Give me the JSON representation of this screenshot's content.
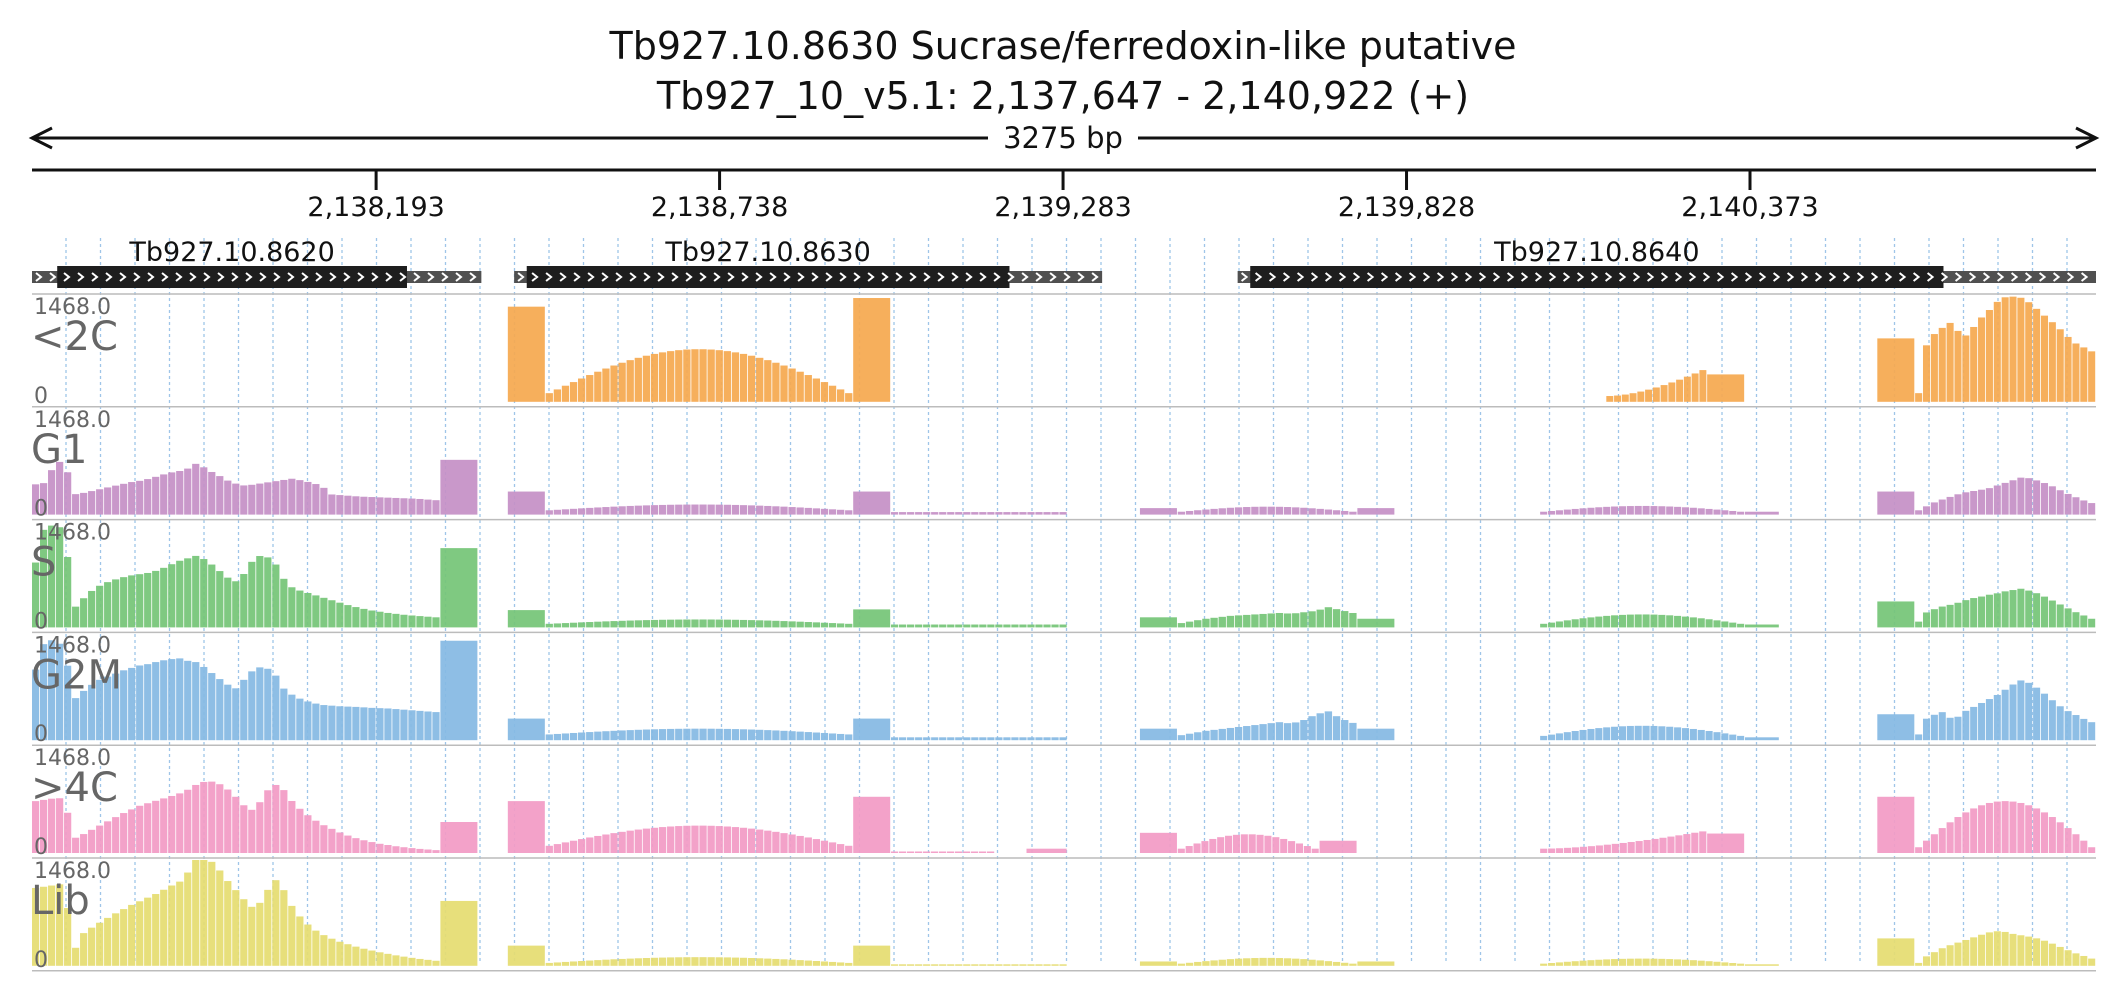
{
  "title": "Tb927.10.8630  Sucrase/ferredoxin-like  putative",
  "subtitle": "Tb927_10_v5.1: 2,137,647 - 2,140,922 (+)",
  "span_label": "3275 bp",
  "chart_data": {
    "type": "bar",
    "region": {
      "chrom": "Tb927_10_v5.1",
      "start": 2137647,
      "end": 2140922,
      "strand": "+"
    },
    "x_ticks": [
      {
        "pos": 2138193,
        "label": "2,138,193"
      },
      {
        "pos": 2138738,
        "label": "2,138,738"
      },
      {
        "pos": 2139283,
        "label": "2,139,283"
      },
      {
        "pos": 2139828,
        "label": "2,139,828"
      },
      {
        "pos": 2140373,
        "label": "2,140,373"
      }
    ],
    "genes": [
      {
        "name": "Tb927.10.8620",
        "utr_start": 2137647,
        "cds_start": 2137687,
        "cds_end": 2138242,
        "utr_end": 2138360
      },
      {
        "name": "Tb927.10.8630",
        "utr_start": 2138412,
        "cds_start": 2138432,
        "cds_end": 2139198,
        "utr_end": 2139345
      },
      {
        "name": "Tb927.10.8640",
        "utr_start": 2139560,
        "cds_start": 2139580,
        "cds_end": 2140680,
        "utr_end": 2140922
      }
    ],
    "ylim": [
      0,
      1468.0
    ],
    "y_max_label": "1468.0",
    "y_min_label": "0",
    "tracks": [
      {
        "name": "<2C",
        "color": "#f5a84e",
        "segments": [
          {
            "start": 2138402,
            "end": 2138462,
            "values": [
              1320
            ]
          },
          {
            "start": 2138462,
            "end": 2138950,
            "kind": "arch",
            "base": 120,
            "peak": 730
          },
          {
            "start": 2138950,
            "end": 2139010,
            "values": [
              1440
            ]
          },
          {
            "start": 2140145,
            "end": 2140305,
            "kind": "rise",
            "base": 80,
            "peak": 440
          },
          {
            "start": 2140305,
            "end": 2140365,
            "values": [
              380
            ]
          },
          {
            "start": 2140575,
            "end": 2140635,
            "values": [
              880
            ]
          },
          {
            "start": 2140635,
            "end": 2140922,
            "kind": "curve",
            "values": [
              120,
              850,
              960,
              1050,
              1120,
              870,
              980,
              1140,
              1250,
              1380,
              1450,
              1460,
              1440,
              1360,
              1250,
              1150,
              1050,
              930,
              820,
              760,
              700
            ]
          }
        ]
      },
      {
        "name": "G1",
        "color": "#c48fc6",
        "segments": [
          {
            "start": 2137647,
            "end": 2138295,
            "kind": "curve",
            "values": [
              420,
              440,
              700,
              760,
              280,
              300,
              330,
              360,
              390,
              420,
              450,
              470,
              500,
              540,
              580,
              600,
              640,
              720,
              620,
              560,
              480,
              430,
              400,
              420,
              440,
              460,
              480,
              500,
              470,
              440,
              400,
              280,
              270,
              260,
              250,
              245,
              240,
              235,
              230,
              225,
              220,
              210,
              200
            ]
          },
          {
            "start": 2138295,
            "end": 2138355,
            "values": [
              760
            ]
          },
          {
            "start": 2138402,
            "end": 2138462,
            "values": [
              320
            ]
          },
          {
            "start": 2138462,
            "end": 2138950,
            "kind": "arch",
            "base": 60,
            "peak": 140
          },
          {
            "start": 2138950,
            "end": 2139010,
            "values": [
              320
            ]
          },
          {
            "start": 2139010,
            "end": 2139290,
            "kind": "flat",
            "value": 35
          },
          {
            "start": 2139405,
            "end": 2139465,
            "values": [
              90
            ]
          },
          {
            "start": 2139465,
            "end": 2139750,
            "kind": "arch",
            "base": 40,
            "peak": 110
          },
          {
            "start": 2139750,
            "end": 2139810,
            "values": [
              90
            ]
          },
          {
            "start": 2140040,
            "end": 2140365,
            "kind": "arch",
            "base": 40,
            "peak": 120
          },
          {
            "start": 2140365,
            "end": 2140420,
            "values": [
              40
            ]
          },
          {
            "start": 2140575,
            "end": 2140635,
            "values": [
              320
            ]
          },
          {
            "start": 2140635,
            "end": 2140922,
            "kind": "curve",
            "values": [
              60,
              120,
              180,
              220,
              260,
              300,
              320,
              340,
              360,
              400,
              440,
              480,
              520,
              500,
              460,
              420,
              360,
              300,
              250,
              200,
              160
            ]
          }
        ]
      },
      {
        "name": "S",
        "color": "#74c476",
        "segments": [
          {
            "start": 2137647,
            "end": 2138295,
            "kind": "curve",
            "values": [
              900,
              1440,
              1400,
              1380,
              260,
              400,
              520,
              600,
              650,
              690,
              720,
              740,
              760,
              800,
              860,
              920,
              960,
              1000,
              920,
              820,
              700,
              640,
              760,
              980,
              1000,
              920,
              680,
              540,
              500,
              460,
              420,
              380,
              340,
              300,
              270,
              240,
              220,
              200,
              185,
              170,
              160,
              150,
              140
            ]
          },
          {
            "start": 2138295,
            "end": 2138355,
            "values": [
              1100
            ]
          },
          {
            "start": 2138402,
            "end": 2138462,
            "values": [
              240
            ]
          },
          {
            "start": 2138462,
            "end": 2138950,
            "kind": "arch",
            "base": 50,
            "peak": 110
          },
          {
            "start": 2138950,
            "end": 2139010,
            "values": [
              250
            ]
          },
          {
            "start": 2139010,
            "end": 2139290,
            "kind": "flat",
            "value": 40
          },
          {
            "start": 2139405,
            "end": 2139465,
            "values": [
              140
            ]
          },
          {
            "start": 2139465,
            "end": 2139750,
            "kind": "curve",
            "values": [
              60,
              90,
              120,
              140,
              160,
              170,
              180,
              190,
              200,
              190,
              210,
              230,
              280,
              240,
              200
            ]
          },
          {
            "start": 2139750,
            "end": 2139810,
            "values": [
              120
            ]
          },
          {
            "start": 2140040,
            "end": 2140365,
            "kind": "arch",
            "base": 50,
            "peak": 180
          },
          {
            "start": 2140365,
            "end": 2140420,
            "values": [
              40
            ]
          },
          {
            "start": 2140575,
            "end": 2140635,
            "values": [
              360
            ]
          },
          {
            "start": 2140635,
            "end": 2140922,
            "kind": "curve",
            "values": [
              80,
              220,
              260,
              300,
              320,
              360,
              400,
              420,
              450,
              470,
              500,
              520,
              540,
              500,
              460,
              400,
              340,
              280,
              220,
              170,
              120
            ]
          }
        ]
      },
      {
        "name": "G2M",
        "color": "#84b8e3",
        "segments": [
          {
            "start": 2137647,
            "end": 2138295,
            "kind": "curve",
            "values": [
              980,
              1400,
              1380,
              1300,
              560,
              680,
              780,
              860,
              900,
              960,
              1000,
              1040,
              1060,
              1100,
              1120,
              1140,
              1100,
              1080,
              980,
              880,
              780,
              720,
              860,
              1000,
              1020,
              940,
              720,
              620,
              560,
              520,
              490,
              480,
              470,
              465,
              460,
              450,
              445,
              440,
              430,
              420,
              410,
              400,
              390
            ]
          },
          {
            "start": 2138295,
            "end": 2138355,
            "values": [
              1380
            ]
          },
          {
            "start": 2138402,
            "end": 2138462,
            "values": [
              300
            ]
          },
          {
            "start": 2138462,
            "end": 2138950,
            "kind": "arch",
            "base": 80,
            "peak": 160
          },
          {
            "start": 2138950,
            "end": 2139010,
            "values": [
              300
            ]
          },
          {
            "start": 2139010,
            "end": 2139290,
            "kind": "flat",
            "value": 40
          },
          {
            "start": 2139405,
            "end": 2139465,
            "values": [
              160
            ]
          },
          {
            "start": 2139465,
            "end": 2139750,
            "kind": "curve",
            "values": [
              70,
              100,
              130,
              150,
              170,
              190,
              210,
              230,
              250,
              230,
              280,
              360,
              400,
              300,
              240
            ]
          },
          {
            "start": 2139750,
            "end": 2139810,
            "values": [
              160
            ]
          },
          {
            "start": 2140040,
            "end": 2140365,
            "kind": "arch",
            "base": 60,
            "peak": 200
          },
          {
            "start": 2140365,
            "end": 2140420,
            "values": [
              40
            ]
          },
          {
            "start": 2140575,
            "end": 2140635,
            "values": [
              360
            ]
          },
          {
            "start": 2140635,
            "end": 2140922,
            "kind": "curve",
            "values": [
              80,
              320,
              360,
              400,
              260,
              380,
              440,
              500,
              560,
              620,
              700,
              780,
              840,
              780,
              700,
              600,
              500,
              420,
              360,
              300,
              250
            ]
          }
        ]
      },
      {
        "name": ">4C",
        "color": "#f29ac4",
        "segments": [
          {
            "start": 2137647,
            "end": 2138295,
            "kind": "curve",
            "values": [
              720,
              740,
              760,
              760,
              200,
              260,
              330,
              400,
              470,
              540,
              600,
              660,
              700,
              740,
              780,
              820,
              880,
              960,
              1000,
              980,
              900,
              780,
              640,
              580,
              820,
              960,
              880,
              700,
              580,
              480,
              400,
              340,
              280,
              230,
              190,
              160,
              130,
              110,
              90,
              75,
              60,
              50,
              40
            ]
          },
          {
            "start": 2138295,
            "end": 2138355,
            "values": [
              430
            ]
          },
          {
            "start": 2138402,
            "end": 2138462,
            "values": [
              720
            ]
          },
          {
            "start": 2138462,
            "end": 2138950,
            "kind": "arch",
            "base": 100,
            "peak": 380
          },
          {
            "start": 2138950,
            "end": 2139010,
            "values": [
              780
            ]
          },
          {
            "start": 2139010,
            "end": 2139175,
            "kind": "flat",
            "value": 20
          },
          {
            "start": 2139225,
            "end": 2139290,
            "values": [
              60
            ]
          },
          {
            "start": 2139405,
            "end": 2139465,
            "values": [
              280
            ]
          },
          {
            "start": 2139465,
            "end": 2139690,
            "kind": "arch",
            "base": 60,
            "peak": 260
          },
          {
            "start": 2139690,
            "end": 2139750,
            "values": [
              170
            ]
          },
          {
            "start": 2140040,
            "end": 2140305,
            "kind": "rise",
            "base": 60,
            "peak": 300
          },
          {
            "start": 2140305,
            "end": 2140365,
            "values": [
              270
            ]
          },
          {
            "start": 2140575,
            "end": 2140635,
            "values": [
              780
            ]
          },
          {
            "start": 2140635,
            "end": 2140922,
            "kind": "arch",
            "base": 80,
            "peak": 720
          }
        ]
      },
      {
        "name": "Lib",
        "color": "#e5dc70",
        "segments": [
          {
            "start": 2137647,
            "end": 2138295,
            "kind": "curve",
            "values": [
              1080,
              1100,
              1120,
              1140,
              200,
              450,
              540,
              620,
              700,
              770,
              840,
              900,
              960,
              1020,
              1100,
              1150,
              1300,
              1560,
              1500,
              1380,
              1200,
              1050,
              900,
              780,
              960,
              1220,
              1060,
              800,
              640,
              520,
              440,
              380,
              330,
              290,
              250,
              220,
              190,
              165,
              140,
              120,
              100,
              85,
              70
            ]
          },
          {
            "start": 2138295,
            "end": 2138355,
            "values": [
              900
            ]
          },
          {
            "start": 2138402,
            "end": 2138462,
            "values": [
              280
            ]
          },
          {
            "start": 2138462,
            "end": 2138950,
            "kind": "arch",
            "base": 40,
            "peak": 120
          },
          {
            "start": 2138950,
            "end": 2139010,
            "values": [
              280
            ]
          },
          {
            "start": 2139010,
            "end": 2139290,
            "kind": "flat",
            "value": 20
          },
          {
            "start": 2139405,
            "end": 2139465,
            "values": [
              60
            ]
          },
          {
            "start": 2139465,
            "end": 2139750,
            "kind": "arch",
            "base": 30,
            "peak": 110
          },
          {
            "start": 2139750,
            "end": 2139810,
            "values": [
              60
            ]
          },
          {
            "start": 2140040,
            "end": 2140365,
            "kind": "arch",
            "base": 30,
            "peak": 100
          },
          {
            "start": 2140365,
            "end": 2140420,
            "values": [
              20
            ]
          },
          {
            "start": 2140575,
            "end": 2140635,
            "values": [
              380
            ]
          },
          {
            "start": 2140635,
            "end": 2140922,
            "kind": "curve",
            "values": [
              40,
              140,
              200,
              260,
              300,
              340,
              380,
              420,
              460,
              480,
              470,
              440,
              420,
              400,
              370,
              330,
              280,
              230,
              180,
              140,
              100
            ]
          }
        ]
      }
    ]
  }
}
